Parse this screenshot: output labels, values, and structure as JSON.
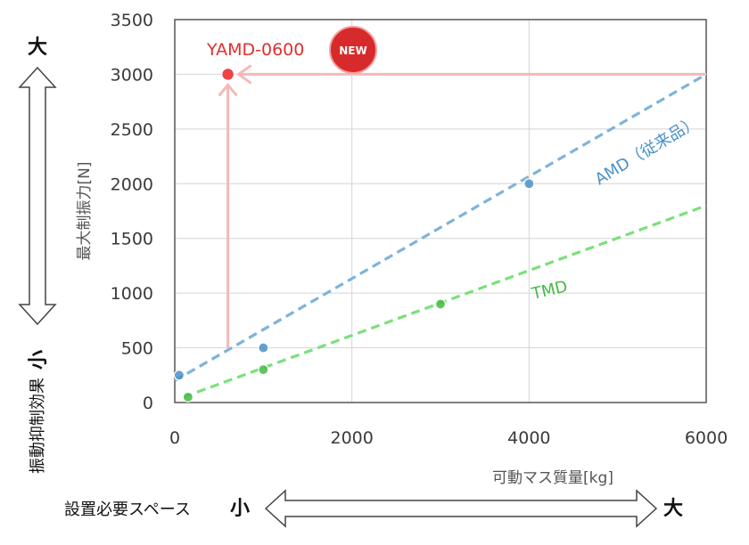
{
  "chart_data": {
    "type": "scatter",
    "xlabel": "可動マス質量[kg]",
    "ylabel": "最大制振力[N]",
    "xlim": [
      0,
      6000
    ],
    "ylim": [
      0,
      3500
    ],
    "x_ticks": [
      "0",
      "2000",
      "4000",
      "6000"
    ],
    "y_ticks": [
      "0",
      "500",
      "1000",
      "1500",
      "2000",
      "2500",
      "3000",
      "3500"
    ],
    "grid": true,
    "series": [
      {
        "name": "AMD（従来品）",
        "color": "#4a90c8",
        "line_color": "#7fb3d9",
        "points": [
          [
            50,
            250
          ],
          [
            1000,
            500
          ],
          [
            4000,
            2000
          ]
        ],
        "trend": [
          [
            0,
            200
          ],
          [
            6000,
            3000
          ]
        ]
      },
      {
        "name": "TMD",
        "color": "#44bb44",
        "line_color": "#7be07b",
        "points": [
          [
            150,
            50
          ],
          [
            1000,
            300
          ],
          [
            3000,
            900
          ]
        ],
        "trend": [
          [
            100,
            50
          ],
          [
            6000,
            1800
          ]
        ]
      }
    ],
    "highlight": {
      "label": "YAMD-0600",
      "badge": "NEW",
      "x": 600,
      "y": 3000,
      "color": "#e03030"
    }
  },
  "annotations": {
    "vertical_axis_label": "振動抑制効果",
    "vertical_top": "大",
    "vertical_bottom": "小",
    "horizontal_axis_label": "設置必要スペース",
    "horizontal_left": "小",
    "horizontal_right": "大"
  }
}
